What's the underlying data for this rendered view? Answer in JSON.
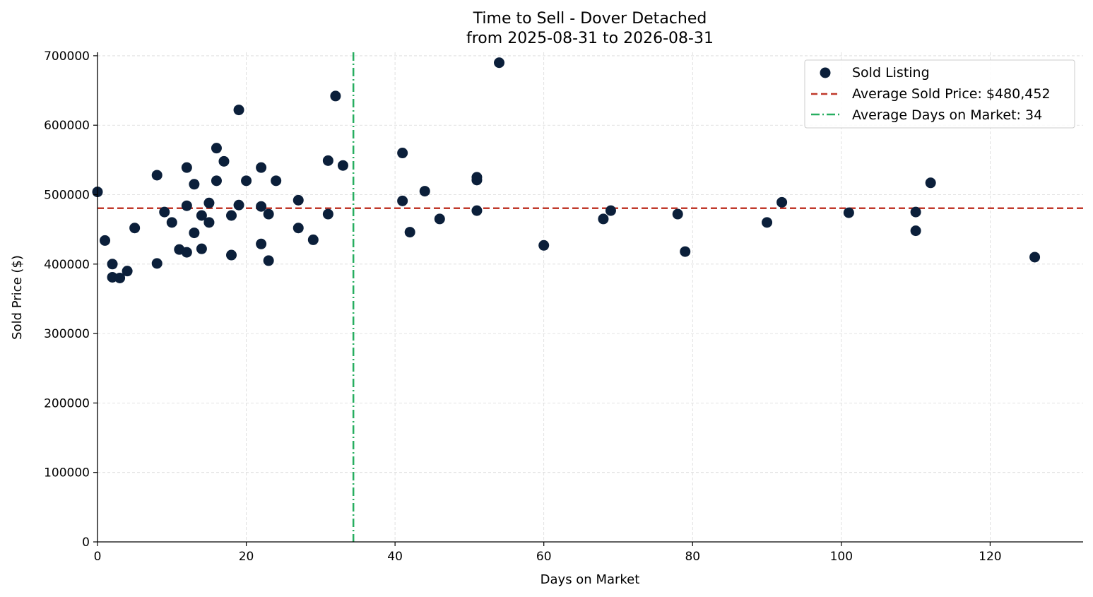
{
  "chart_data": {
    "type": "scatter",
    "title": "Time to Sell - Dover Detached",
    "subtitle": "from 2025-08-31 to 2026-08-31",
    "xlabel": "Days on Market",
    "ylabel": "Sold Price ($)",
    "xlim": [
      0,
      132.5
    ],
    "ylim": [
      0,
      705000
    ],
    "x_ticks": [
      0,
      20,
      40,
      60,
      80,
      100,
      120
    ],
    "y_ticks": [
      0,
      100000,
      200000,
      300000,
      400000,
      500000,
      600000,
      700000
    ],
    "grid": true,
    "legend_position": "top-right",
    "colors": {
      "points": "#0b1f3a",
      "avg_price_line": "#c0392b",
      "avg_days_line": "#27ae60"
    },
    "series": [
      {
        "name": "Sold Listing",
        "points": [
          [
            0,
            504000
          ],
          [
            1,
            434000
          ],
          [
            2,
            400000
          ],
          [
            2,
            381000
          ],
          [
            3,
            380000
          ],
          [
            4,
            390000
          ],
          [
            5,
            452000
          ],
          [
            8,
            528000
          ],
          [
            8,
            401000
          ],
          [
            9,
            475000
          ],
          [
            10,
            460000
          ],
          [
            11,
            421000
          ],
          [
            12,
            539000
          ],
          [
            12,
            484000
          ],
          [
            12,
            417000
          ],
          [
            13,
            515000
          ],
          [
            13,
            445000
          ],
          [
            14,
            470000
          ],
          [
            14,
            422000
          ],
          [
            15,
            488000
          ],
          [
            15,
            460000
          ],
          [
            16,
            567000
          ],
          [
            16,
            520000
          ],
          [
            17,
            548000
          ],
          [
            18,
            470000
          ],
          [
            18,
            413000
          ],
          [
            19,
            622000
          ],
          [
            19,
            485000
          ],
          [
            20,
            520000
          ],
          [
            22,
            539000
          ],
          [
            22,
            483000
          ],
          [
            22,
            429000
          ],
          [
            23,
            472000
          ],
          [
            23,
            405000
          ],
          [
            24,
            520000
          ],
          [
            27,
            492000
          ],
          [
            27,
            452000
          ],
          [
            29,
            435000
          ],
          [
            31,
            549000
          ],
          [
            31,
            472000
          ],
          [
            32,
            642000
          ],
          [
            33,
            542000
          ],
          [
            41,
            560000
          ],
          [
            41,
            491000
          ],
          [
            42,
            446000
          ],
          [
            44,
            505000
          ],
          [
            46,
            465000
          ],
          [
            51,
            525000
          ],
          [
            51,
            521000
          ],
          [
            51,
            477000
          ],
          [
            54,
            690000
          ],
          [
            60,
            427000
          ],
          [
            68,
            465000
          ],
          [
            69,
            477000
          ],
          [
            78,
            472000
          ],
          [
            79,
            418000
          ],
          [
            90,
            460000
          ],
          [
            92,
            489000
          ],
          [
            101,
            474000
          ],
          [
            110,
            475000
          ],
          [
            110,
            448000
          ],
          [
            112,
            517000
          ],
          [
            126,
            410000
          ]
        ]
      }
    ],
    "reference_lines": [
      {
        "name": "Average Sold Price: $480,452",
        "axis": "y",
        "value": 480452,
        "style": "dashed"
      },
      {
        "name": "Average Days on Market: 34",
        "axis": "x",
        "value": 34.4,
        "style": "dashdot"
      }
    ]
  }
}
